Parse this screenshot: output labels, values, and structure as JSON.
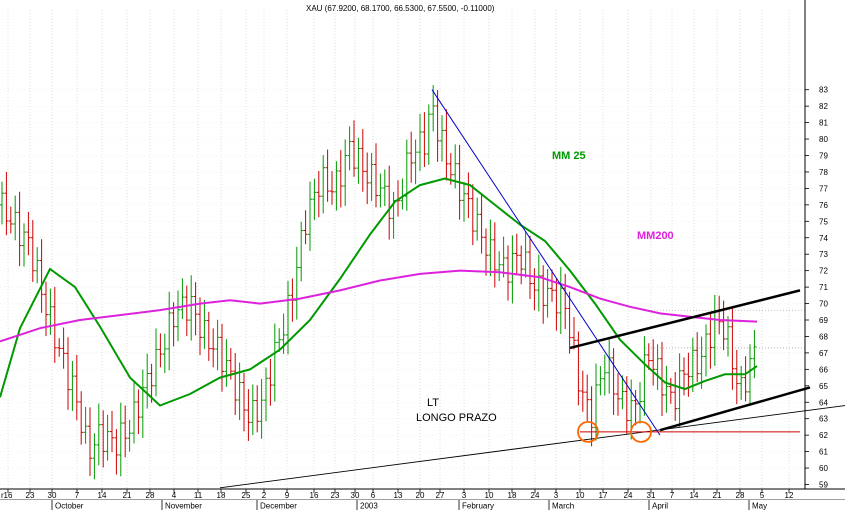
{
  "header": {
    "quote": "XAU (67.9200, 68.1700, 66.5300, 67.5500, -0.11000)"
  },
  "annotations": {
    "mm25": "MM 25",
    "mm200": "MM200",
    "lt": "LT",
    "longo_prazo": "LONGO PRAZO"
  },
  "colors": {
    "bars_up": "#009900",
    "bars_down": "#cc0000",
    "mm25": "#009900",
    "mm200": "#dd22dd",
    "downtrend": "#0000cc",
    "channel": "#000000",
    "support": "#cc0000",
    "circles": "#ff6600"
  },
  "chart_data": {
    "type": "bar",
    "subtype": "ohlc-price-chart",
    "title": "XAU (67.9200, 68.1700, 66.5300, 67.5500, -0.11000)",
    "ylim": [
      58.5,
      83.5
    ],
    "y_ticks": [
      59,
      60,
      61,
      62,
      63,
      64,
      65,
      66,
      67,
      68,
      69,
      70,
      71,
      72,
      73,
      74,
      75,
      76,
      77,
      78,
      79,
      80,
      81,
      82,
      83
    ],
    "x_day_ticks": [
      "16",
      "23",
      "30",
      "7",
      "14",
      "21",
      "28",
      "4",
      "11",
      "18",
      "25",
      "2",
      "9",
      "16",
      "23",
      "30",
      "6",
      "13",
      "20",
      "27",
      "3",
      "10",
      "18",
      "24",
      "3",
      "10",
      "17",
      "24",
      "31",
      "7",
      "14",
      "21",
      "28",
      "5",
      "12"
    ],
    "x_month_labels": [
      "October",
      "November",
      "December",
      "2003",
      "February",
      "March",
      "April",
      "May"
    ],
    "x_left_edge_label": "r",
    "grid": true,
    "series": [
      {
        "name": "MM 25",
        "points": [
          [
            0,
            64.3
          ],
          [
            20,
            68.5
          ],
          [
            50,
            72.1
          ],
          [
            75,
            71.0
          ],
          [
            100,
            68.6
          ],
          [
            130,
            65.5
          ],
          [
            160,
            63.8
          ],
          [
            190,
            64.5
          ],
          [
            220,
            65.5
          ],
          [
            250,
            66.0
          ],
          [
            280,
            67.2
          ],
          [
            310,
            69.0
          ],
          [
            340,
            71.5
          ],
          [
            370,
            74.2
          ],
          [
            395,
            76.2
          ],
          [
            420,
            77.2
          ],
          [
            445,
            77.6
          ],
          [
            470,
            77.2
          ],
          [
            495,
            76.0
          ],
          [
            520,
            74.8
          ],
          [
            545,
            73.8
          ],
          [
            570,
            72.0
          ],
          [
            595,
            70.0
          ],
          [
            620,
            67.8
          ],
          [
            645,
            66.3
          ],
          [
            665,
            65.2
          ],
          [
            685,
            64.8
          ],
          [
            705,
            65.3
          ],
          [
            725,
            65.7
          ],
          [
            745,
            65.7
          ],
          [
            757,
            66.2
          ]
        ]
      },
      {
        "name": "MM200",
        "points": [
          [
            0,
            67.7
          ],
          [
            40,
            68.5
          ],
          [
            80,
            69.0
          ],
          [
            120,
            69.3
          ],
          [
            160,
            69.6
          ],
          [
            200,
            70.0
          ],
          [
            230,
            70.2
          ],
          [
            260,
            70.0
          ],
          [
            300,
            70.3
          ],
          [
            340,
            70.8
          ],
          [
            380,
            71.4
          ],
          [
            420,
            71.8
          ],
          [
            460,
            72.0
          ],
          [
            500,
            71.9
          ],
          [
            540,
            71.6
          ],
          [
            570,
            71.0
          ],
          [
            600,
            70.3
          ],
          [
            630,
            69.8
          ],
          [
            660,
            69.4
          ],
          [
            690,
            69.2
          ],
          [
            720,
            69.0
          ],
          [
            757,
            68.9
          ]
        ]
      }
    ],
    "trendlines": [
      {
        "name": "LT",
        "points": [
          [
            220,
            58.8
          ],
          [
            845,
            63.8
          ]
        ]
      },
      {
        "name": "downtrend",
        "points": [
          [
            432,
            83.0
          ],
          [
            660,
            62.0
          ]
        ]
      },
      {
        "name": "channel-top",
        "points": [
          [
            570,
            67.3
          ],
          [
            800,
            70.8
          ]
        ]
      },
      {
        "name": "channel-bottom",
        "points": [
          [
            660,
            62.3
          ],
          [
            810,
            64.9
          ]
        ]
      },
      {
        "name": "support",
        "points": [
          [
            580,
            62.2
          ],
          [
            800,
            62.2
          ]
        ]
      }
    ],
    "reference_lines": [
      69.6,
      67.3
    ],
    "markers": [
      [
        588,
        62.2
      ],
      [
        641,
        62.2
      ]
    ]
  }
}
